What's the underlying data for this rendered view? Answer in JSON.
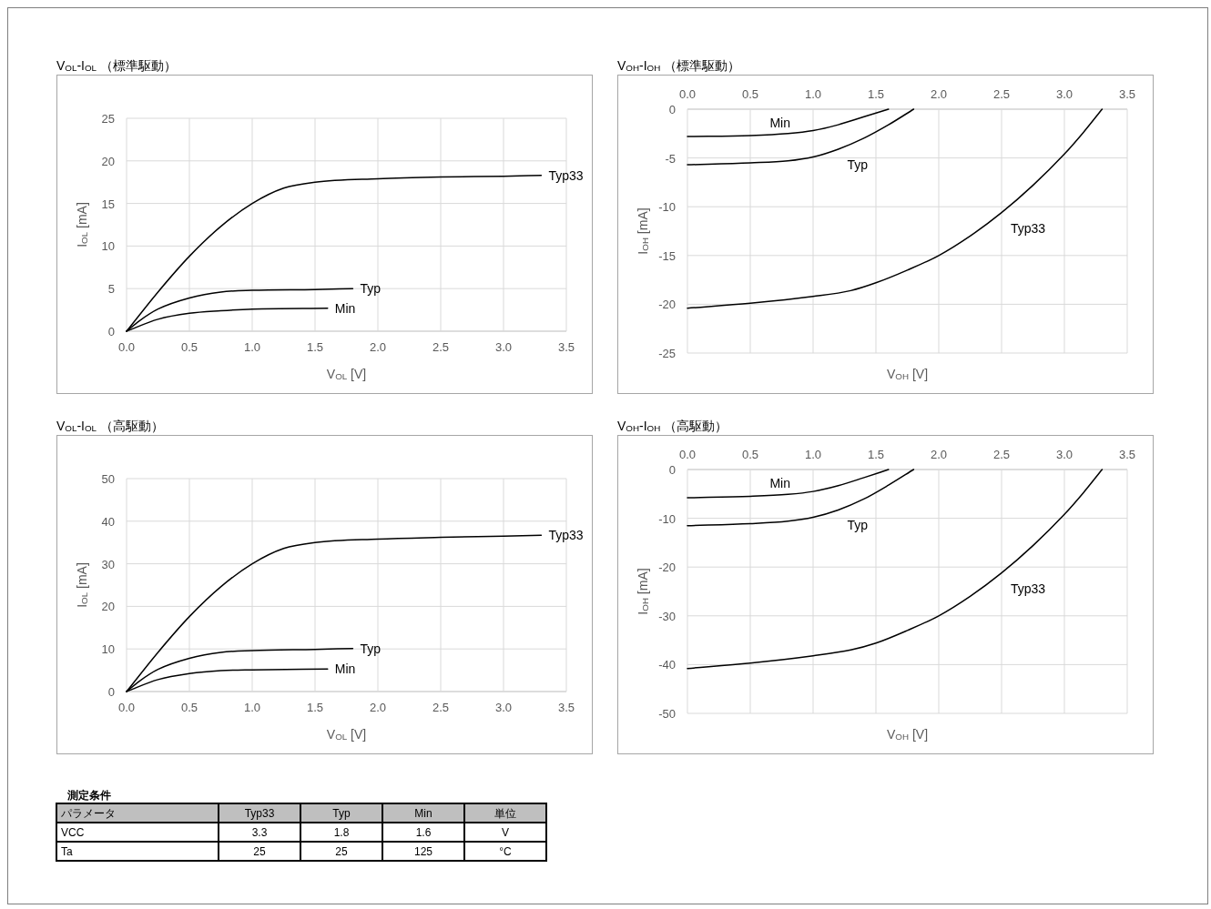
{
  "chart_data": [
    {
      "type": "line",
      "title": "V$_{OL}$-I$_{OL}$ （標準駆動）",
      "xlabel": "V$_{OL}$ [V]",
      "ylabel": "I$_{OL}$ [mA]",
      "grid": true,
      "xlim": [
        0,
        3.5
      ],
      "ylim": [
        0,
        25
      ],
      "xticks": [
        {
          "value": 0,
          "label": "0.0"
        },
        0.5,
        {
          "value": 1,
          "label": "1.0"
        },
        1.5,
        {
          "value": 2,
          "label": "2.0"
        },
        2.5,
        {
          "value": 3,
          "label": "3.0"
        },
        3.5
      ],
      "yticks": [
        0,
        5,
        10,
        15,
        20,
        25
      ],
      "series": [
        {
          "name": "Typ33",
          "color": "#000000",
          "x": [
            0,
            0.25,
            0.5,
            0.75,
            1.0,
            1.25,
            1.5,
            2.0,
            2.5,
            3.0,
            3.3
          ],
          "values": [
            0,
            4.6,
            8.8,
            12.3,
            15.0,
            16.8,
            17.5,
            17.9,
            18.1,
            18.2,
            18.3
          ]
        },
        {
          "name": "Typ",
          "color": "#000000",
          "x": [
            0,
            0.1,
            0.25,
            0.5,
            0.75,
            1.0,
            1.5,
            1.8
          ],
          "values": [
            0,
            1.2,
            2.6,
            3.9,
            4.6,
            4.8,
            4.9,
            5.0
          ]
        },
        {
          "name": "Min",
          "color": "#000000",
          "x": [
            0,
            0.25,
            0.5,
            0.75,
            1.0,
            1.6
          ],
          "values": [
            0,
            1.4,
            2.1,
            2.4,
            2.6,
            2.7
          ]
        }
      ]
    },
    {
      "type": "line",
      "title": "V$_{OH}$-I$_{OH}$ （標準駆動）",
      "xlabel": "V$_{OH}$ [V]",
      "ylabel": "I$_{OH}$ [mA]",
      "grid": true,
      "xlim": [
        0,
        3.5
      ],
      "ylim": [
        -25,
        0
      ],
      "xticks": [
        {
          "value": 0,
          "label": "0.0"
        },
        0.5,
        {
          "value": 1,
          "label": "1.0"
        },
        1.5,
        {
          "value": 2,
          "label": "2.0"
        },
        2.5,
        {
          "value": 3,
          "label": "3.0"
        },
        3.5
      ],
      "yticks": [
        -25,
        -20,
        -15,
        -10,
        -5,
        0
      ],
      "series": [
        {
          "name": "Min",
          "color": "#000000",
          "x": [
            0,
            0.5,
            0.8,
            1.0,
            1.2,
            1.4,
            1.6
          ],
          "values": [
            -2.8,
            -2.7,
            -2.5,
            -2.2,
            -1.6,
            -0.8,
            0
          ]
        },
        {
          "name": "Typ",
          "color": "#000000",
          "x": [
            0,
            0.5,
            0.8,
            1.0,
            1.2,
            1.4,
            1.6,
            1.8
          ],
          "values": [
            -5.7,
            -5.5,
            -5.3,
            -4.9,
            -4.1,
            -3.0,
            -1.6,
            0
          ]
        },
        {
          "name": "Typ33",
          "color": "#000000",
          "x": [
            0,
            0.5,
            1.0,
            1.3,
            1.5,
            1.75,
            2.0,
            2.25,
            2.5,
            2.75,
            3.0,
            3.15,
            3.3
          ],
          "values": [
            -20.4,
            -19.9,
            -19.2,
            -18.6,
            -17.8,
            -16.5,
            -15.0,
            -13.0,
            -10.6,
            -7.8,
            -4.6,
            -2.4,
            0
          ]
        }
      ]
    },
    {
      "type": "line",
      "title": "V$_{OL}$-I$_{OL}$ （高駆動）",
      "xlabel": "V$_{OL}$ [V]",
      "ylabel": "I$_{OL}$ [mA]",
      "grid": true,
      "xlim": [
        0,
        3.5
      ],
      "ylim": [
        0,
        50
      ],
      "xticks": [
        {
          "value": 0,
          "label": "0.0"
        },
        0.5,
        {
          "value": 1,
          "label": "1.0"
        },
        1.5,
        {
          "value": 2,
          "label": "2.0"
        },
        2.5,
        {
          "value": 3,
          "label": "3.0"
        },
        3.5
      ],
      "yticks": [
        0,
        10,
        20,
        30,
        40,
        50
      ],
      "series": [
        {
          "name": "Typ33",
          "color": "#000000",
          "x": [
            0,
            0.25,
            0.5,
            0.75,
            1.0,
            1.25,
            1.5,
            2.0,
            2.5,
            3.0,
            3.3
          ],
          "values": [
            0,
            9.2,
            17.6,
            24.6,
            30.0,
            33.6,
            35.0,
            35.8,
            36.2,
            36.5,
            36.7
          ]
        },
        {
          "name": "Typ",
          "color": "#000000",
          "x": [
            0,
            0.1,
            0.25,
            0.5,
            0.75,
            1.0,
            1.5,
            1.8
          ],
          "values": [
            0,
            2.4,
            5.2,
            7.8,
            9.2,
            9.6,
            9.9,
            10.1
          ]
        },
        {
          "name": "Min",
          "color": "#000000",
          "x": [
            0,
            0.25,
            0.5,
            0.75,
            1.0,
            1.6
          ],
          "values": [
            0,
            2.8,
            4.2,
            4.9,
            5.1,
            5.3
          ]
        }
      ]
    },
    {
      "type": "line",
      "title": "V$_{OH}$-I$_{OH}$ （高駆動）",
      "xlabel": "V$_{OH}$ [V]",
      "ylabel": "I$_{OH}$ [mA]",
      "grid": true,
      "xlim": [
        0,
        3.5
      ],
      "ylim": [
        -50,
        0
      ],
      "xticks": [
        {
          "value": 0,
          "label": "0.0"
        },
        0.5,
        {
          "value": 1,
          "label": "1.0"
        },
        1.5,
        {
          "value": 2,
          "label": "2.0"
        },
        2.5,
        {
          "value": 3,
          "label": "3.0"
        },
        3.5
      ],
      "yticks": [
        -50,
        -40,
        -30,
        -20,
        -10,
        0
      ],
      "series": [
        {
          "name": "Min",
          "color": "#000000",
          "x": [
            0,
            0.5,
            0.8,
            1.0,
            1.2,
            1.4,
            1.6
          ],
          "values": [
            -5.8,
            -5.5,
            -5.1,
            -4.5,
            -3.3,
            -1.7,
            0
          ]
        },
        {
          "name": "Typ",
          "color": "#000000",
          "x": [
            0,
            0.5,
            0.8,
            1.0,
            1.2,
            1.4,
            1.6,
            1.8
          ],
          "values": [
            -11.5,
            -11.1,
            -10.6,
            -9.8,
            -8.3,
            -6.1,
            -3.2,
            0
          ]
        },
        {
          "name": "Typ33",
          "color": "#000000",
          "x": [
            0,
            0.5,
            1.0,
            1.3,
            1.5,
            1.75,
            2.0,
            2.25,
            2.5,
            2.75,
            3.0,
            3.15,
            3.3
          ],
          "values": [
            -40.8,
            -39.7,
            -38.2,
            -37.0,
            -35.6,
            -33.0,
            -30.0,
            -26.0,
            -21.2,
            -15.6,
            -9.2,
            -4.8,
            0
          ]
        }
      ]
    },
    {
      "type": "other",
      "title": "測定条件",
      "annotations": [
        "パラメータ",
        "Typ33",
        "Typ",
        "Min",
        "単位",
        "VCC",
        "3.3",
        "1.8",
        "1.6",
        "V",
        "Ta",
        "25",
        "25",
        "125",
        "°C"
      ]
    }
  ]
}
